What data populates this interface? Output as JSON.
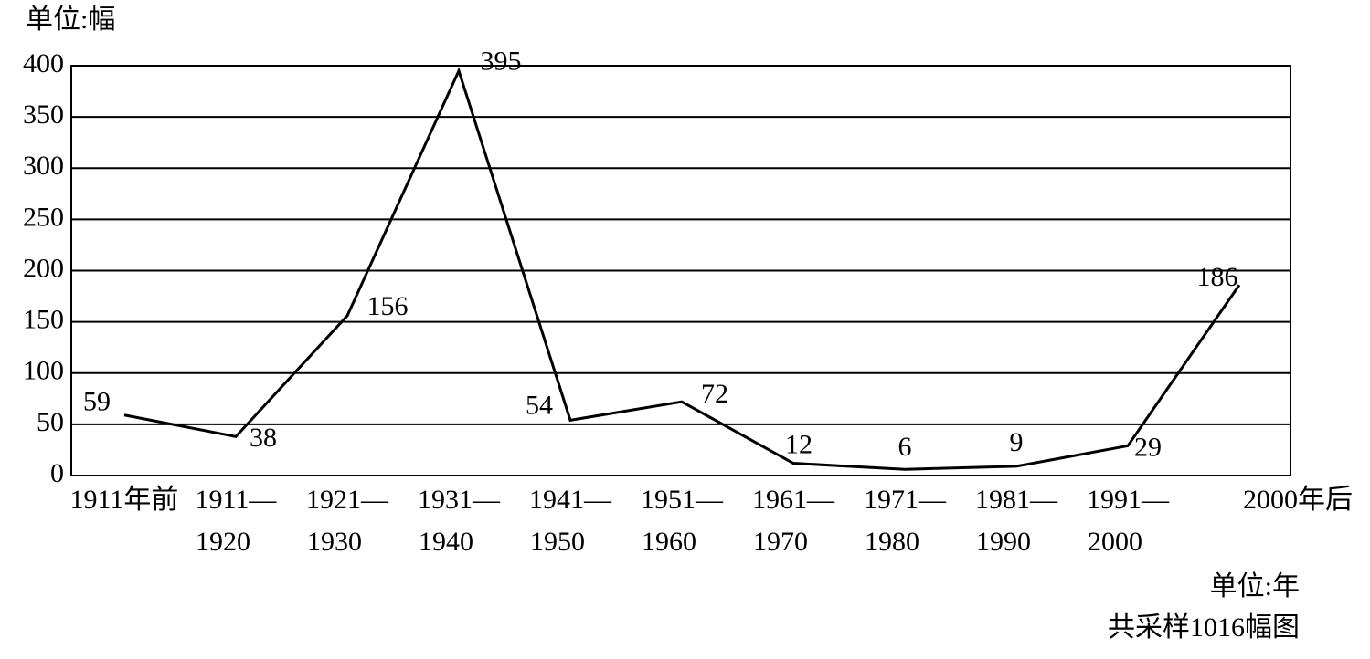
{
  "chart_data": {
    "type": "line",
    "y_label": "单位:幅",
    "x_label": "单位:年",
    "note": "共采样1016幅图",
    "categories": [
      "1911年前",
      "1911—1920",
      "1921—1930",
      "1931—1940",
      "1941—1950",
      "1951—1960",
      "1961—1970",
      "1971—1980",
      "1981—1990",
      "1991—2000",
      "2000年后"
    ],
    "values": [
      59,
      38,
      156,
      395,
      54,
      72,
      12,
      6,
      9,
      29,
      186
    ],
    "color": "#000000",
    "ylim": [
      0,
      400
    ],
    "yticks": [
      0,
      50,
      100,
      150,
      200,
      250,
      300,
      350,
      400
    ],
    "grid": true
  }
}
